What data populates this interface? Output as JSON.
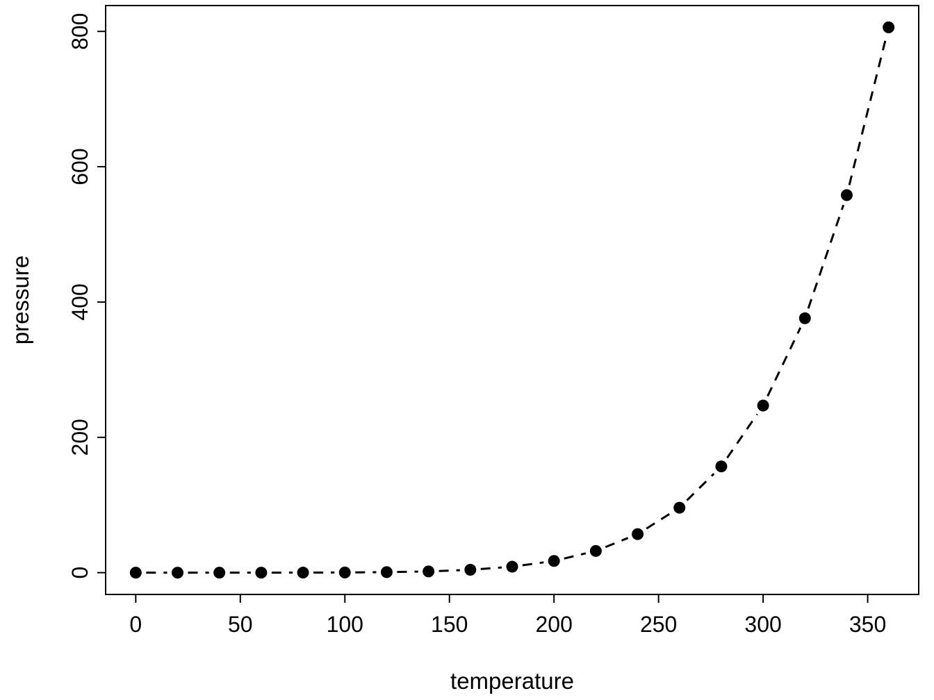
{
  "chart_data": {
    "type": "scatter",
    "title": "",
    "xlabel": "temperature",
    "ylabel": "pressure",
    "x": [
      0,
      20,
      40,
      60,
      80,
      100,
      120,
      140,
      160,
      180,
      200,
      220,
      240,
      260,
      280,
      300,
      320,
      340,
      360
    ],
    "y": [
      0.0002,
      0.0012,
      0.006,
      0.03,
      0.09,
      0.27,
      0.75,
      1.85,
      4.2,
      8.8,
      17.3,
      32.1,
      57,
      96,
      157,
      247,
      376,
      558,
      806
    ],
    "xticks": [
      0,
      50,
      100,
      150,
      200,
      250,
      300,
      350
    ],
    "yticks": [
      0,
      200,
      400,
      600,
      800
    ],
    "xlim": [
      -14.4,
      374.4
    ],
    "ylim": [
      -32.2,
      838.2
    ],
    "grid": false,
    "legend": null,
    "line_between_points": true,
    "style": {
      "background": "#ffffff",
      "point_color": "#000000",
      "line_color": "#000000",
      "axis_color": "#000000",
      "line_style": "dashed",
      "line_dash": "14 11",
      "line_width": 3,
      "point_radius": 8.5,
      "point_gap": 15,
      "tick_font_size": 32,
      "label_font_size": 33
    }
  }
}
